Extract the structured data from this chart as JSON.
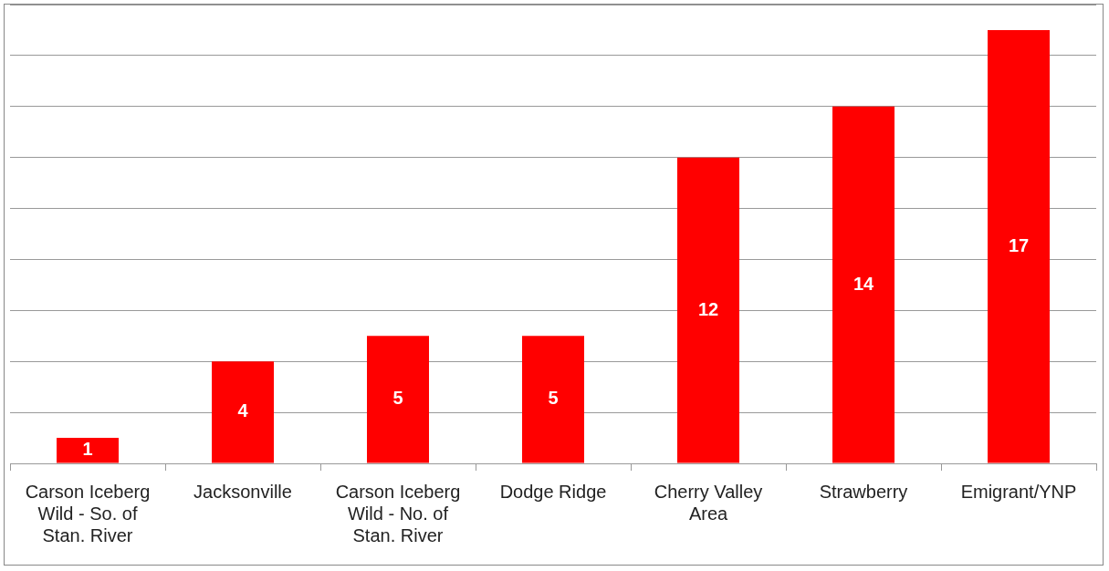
{
  "chart_data": {
    "type": "bar",
    "categories": [
      "Carson Iceberg Wild - So. of Stan. River",
      "Jacksonville",
      "Carson Iceberg Wild - No. of Stan. River",
      "Dodge Ridge",
      "Cherry Valley Area",
      "Strawberry",
      "Emigrant/YNP"
    ],
    "values": [
      1,
      4,
      5,
      5,
      12,
      14,
      17
    ],
    "color": "#ff0000",
    "ylim": [
      0,
      18
    ],
    "yticks": [
      {
        "value": 0,
        "label": null
      },
      {
        "value": 2,
        "label": null
      },
      {
        "value": 4,
        "label": null
      },
      {
        "value": 6,
        "label": null
      },
      {
        "value": 8,
        "label": null
      },
      {
        "value": 10,
        "label": null
      },
      {
        "value": 12,
        "label": null
      },
      {
        "value": 14,
        "label": null
      },
      {
        "value": 16,
        "label": null
      },
      {
        "value": 18,
        "label": null
      }
    ],
    "grid": "y",
    "tick_labels": "x",
    "data_labels": true,
    "legend": false
  }
}
